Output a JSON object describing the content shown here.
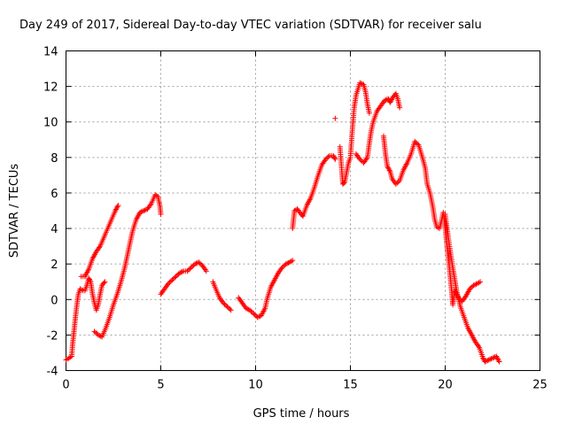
{
  "chart_data": {
    "type": "scatter",
    "title": "Day 249 of 2017, Sidereal Day-to-day VTEC variation (SDTVAR) for receiver salu",
    "xlabel": "GPS time / hours",
    "ylabel": "SDTVAR / TECUs",
    "xlim": [
      0,
      25
    ],
    "ylim": [
      -4,
      14
    ],
    "xticks": [
      "0",
      "5",
      "10",
      "15",
      "20",
      "25"
    ],
    "yticks": [
      "-4",
      "-2",
      "0",
      "2",
      "4",
      "6",
      "8",
      "10",
      "12",
      "14"
    ],
    "grid": true,
    "marker": "+",
    "color": "#ff0000",
    "series": [
      {
        "name": "SDTVAR",
        "segments": [
          [
            [
              0.0,
              -3.4
            ],
            [
              0.15,
              -3.3
            ],
            [
              0.3,
              -3.2
            ],
            [
              0.35,
              -2.5
            ],
            [
              0.45,
              -1.5
            ],
            [
              0.55,
              -0.5
            ],
            [
              0.65,
              0.3
            ],
            [
              0.75,
              0.6
            ],
            [
              0.9,
              0.5
            ],
            [
              1.0,
              0.5
            ],
            [
              1.1,
              0.8
            ],
            [
              1.2,
              1.2
            ],
            [
              1.3,
              1.0
            ],
            [
              1.4,
              0.3
            ],
            [
              1.5,
              -0.2
            ],
            [
              1.6,
              -0.6
            ],
            [
              1.7,
              -0.3
            ],
            [
              1.8,
              0.3
            ],
            [
              1.9,
              0.8
            ],
            [
              2.05,
              1.0
            ]
          ],
          [
            [
              0.8,
              1.3
            ],
            [
              1.0,
              1.3
            ],
            [
              1.2,
              1.7
            ],
            [
              1.4,
              2.3
            ],
            [
              1.6,
              2.7
            ],
            [
              1.8,
              3.0
            ],
            [
              2.0,
              3.5
            ],
            [
              2.2,
              4.0
            ],
            [
              2.4,
              4.5
            ],
            [
              2.6,
              5.0
            ],
            [
              2.75,
              5.3
            ]
          ],
          [
            [
              1.5,
              -1.8
            ],
            [
              1.7,
              -2.0
            ],
            [
              1.9,
              -2.1
            ],
            [
              2.1,
              -1.6
            ],
            [
              2.3,
              -1.0
            ],
            [
              2.5,
              -0.3
            ],
            [
              2.7,
              0.3
            ],
            [
              2.9,
              1.0
            ],
            [
              3.1,
              1.8
            ],
            [
              3.3,
              2.8
            ],
            [
              3.5,
              3.8
            ],
            [
              3.7,
              4.5
            ],
            [
              3.9,
              4.9
            ],
            [
              4.1,
              5.0
            ],
            [
              4.3,
              5.1
            ],
            [
              4.5,
              5.4
            ],
            [
              4.7,
              5.9
            ],
            [
              4.85,
              5.8
            ],
            [
              4.95,
              5.3
            ],
            [
              5.0,
              4.8
            ]
          ],
          [
            [
              5.0,
              0.3
            ],
            [
              5.2,
              0.6
            ],
            [
              5.4,
              0.9
            ],
            [
              5.6,
              1.1
            ],
            [
              5.8,
              1.3
            ],
            [
              6.0,
              1.5
            ],
            [
              6.2,
              1.6
            ],
            [
              6.4,
              1.6
            ],
            [
              6.6,
              1.8
            ],
            [
              6.8,
              2.0
            ],
            [
              7.0,
              2.1
            ],
            [
              7.2,
              1.9
            ],
            [
              7.4,
              1.6
            ]
          ],
          [
            [
              7.75,
              1.0
            ],
            [
              7.9,
              0.6
            ],
            [
              8.1,
              0.1
            ],
            [
              8.3,
              -0.2
            ],
            [
              8.5,
              -0.4
            ],
            [
              8.7,
              -0.6
            ]
          ],
          [
            [
              9.1,
              0.1
            ],
            [
              9.3,
              -0.2
            ],
            [
              9.5,
              -0.5
            ],
            [
              9.7,
              -0.6
            ],
            [
              9.9,
              -0.8
            ],
            [
              10.1,
              -1.0
            ],
            [
              10.3,
              -0.9
            ],
            [
              10.5,
              -0.5
            ],
            [
              10.6,
              0.0
            ],
            [
              10.8,
              0.7
            ],
            [
              11.0,
              1.1
            ],
            [
              11.2,
              1.5
            ],
            [
              11.4,
              1.8
            ],
            [
              11.6,
              2.0
            ],
            [
              11.8,
              2.1
            ],
            [
              11.95,
              2.2
            ]
          ],
          [
            [
              11.95,
              4.0
            ],
            [
              12.05,
              5.0
            ],
            [
              12.2,
              5.1
            ],
            [
              12.4,
              4.8
            ],
            [
              12.5,
              4.7
            ],
            [
              12.7,
              5.3
            ],
            [
              12.9,
              5.7
            ],
            [
              13.1,
              6.3
            ],
            [
              13.3,
              7.0
            ],
            [
              13.5,
              7.6
            ],
            [
              13.7,
              7.9
            ],
            [
              13.9,
              8.1
            ],
            [
              14.1,
              8.1
            ],
            [
              14.2,
              7.9
            ]
          ],
          [
            [
              14.2,
              10.2
            ]
          ],
          [
            [
              14.45,
              8.6
            ],
            [
              14.55,
              7.2
            ],
            [
              14.6,
              6.5
            ],
            [
              14.7,
              6.6
            ],
            [
              14.9,
              7.7
            ],
            [
              15.0,
              8.0
            ],
            [
              15.1,
              9.5
            ],
            [
              15.2,
              10.8
            ],
            [
              15.3,
              11.5
            ],
            [
              15.5,
              12.2
            ],
            [
              15.7,
              12.1
            ],
            [
              15.8,
              11.7
            ],
            [
              15.9,
              11.0
            ],
            [
              16.0,
              10.5
            ]
          ],
          [
            [
              15.3,
              8.2
            ],
            [
              15.5,
              7.9
            ],
            [
              15.7,
              7.7
            ],
            [
              15.9,
              8.0
            ],
            [
              16.0,
              8.8
            ],
            [
              16.1,
              9.5
            ],
            [
              16.2,
              10.0
            ],
            [
              16.4,
              10.6
            ],
            [
              16.6,
              10.9
            ],
            [
              16.8,
              11.2
            ],
            [
              17.0,
              11.3
            ],
            [
              17.1,
              11.1
            ],
            [
              17.25,
              11.4
            ],
            [
              17.4,
              11.6
            ],
            [
              17.5,
              11.3
            ],
            [
              17.6,
              10.8
            ]
          ],
          [
            [
              16.75,
              9.2
            ],
            [
              16.85,
              8.2
            ],
            [
              16.95,
              7.5
            ],
            [
              17.1,
              7.2
            ],
            [
              17.2,
              6.8
            ],
            [
              17.4,
              6.5
            ],
            [
              17.6,
              6.7
            ],
            [
              17.8,
              7.3
            ],
            [
              18.0,
              7.7
            ],
            [
              18.2,
              8.2
            ],
            [
              18.4,
              8.9
            ],
            [
              18.6,
              8.7
            ],
            [
              18.8,
              8.0
            ],
            [
              18.95,
              7.4
            ],
            [
              19.05,
              6.5
            ],
            [
              19.2,
              6.0
            ],
            [
              19.35,
              5.2
            ],
            [
              19.45,
              4.5
            ],
            [
              19.55,
              4.1
            ],
            [
              19.7,
              4.0
            ],
            [
              19.8,
              4.4
            ],
            [
              19.9,
              4.9
            ],
            [
              20.0,
              4.2
            ],
            [
              20.05,
              3.5
            ],
            [
              20.15,
              2.5
            ],
            [
              20.25,
              1.5
            ],
            [
              20.35,
              0.4
            ],
            [
              20.4,
              -0.3
            ],
            [
              20.5,
              0.5
            ],
            [
              20.6,
              0.3
            ],
            [
              20.75,
              0.0
            ],
            [
              20.9,
              -0.1
            ],
            [
              21.1,
              0.2
            ],
            [
              21.3,
              0.6
            ],
            [
              21.5,
              0.8
            ],
            [
              21.7,
              0.9
            ],
            [
              21.85,
              1.0
            ]
          ],
          [
            [
              20.0,
              4.8
            ],
            [
              20.2,
              3.2
            ],
            [
              20.4,
              1.8
            ],
            [
              20.6,
              0.5
            ],
            [
              20.8,
              -0.4
            ],
            [
              21.0,
              -1.0
            ],
            [
              21.2,
              -1.6
            ],
            [
              21.4,
              -2.0
            ],
            [
              21.6,
              -2.4
            ],
            [
              21.8,
              -2.7
            ],
            [
              22.0,
              -3.3
            ],
            [
              22.1,
              -3.5
            ],
            [
              22.3,
              -3.4
            ],
            [
              22.5,
              -3.3
            ],
            [
              22.7,
              -3.2
            ],
            [
              22.85,
              -3.5
            ]
          ]
        ]
      }
    ]
  }
}
